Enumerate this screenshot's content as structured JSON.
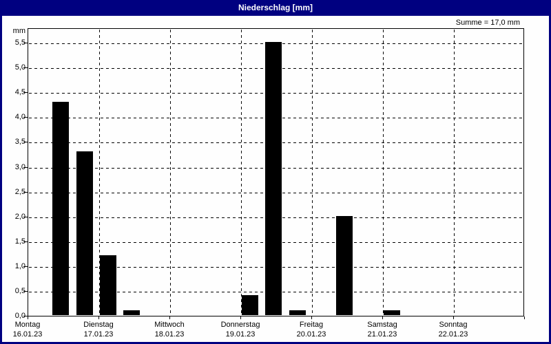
{
  "window": {
    "title": "Niederschlag [mm]",
    "titlebar_color": "#000080",
    "border_color": "#000080",
    "background_color": "#fefefe"
  },
  "chart_data": {
    "type": "bar",
    "title": "Niederschlag [mm]",
    "ylabel": "mm",
    "xlabel": "",
    "sum_label": "Summe = 17,0 mm",
    "sum_value_mm": "17,0",
    "bar_color": "#000000",
    "grid_style": "dashed",
    "legend": "none",
    "ylim": [
      0,
      5.78
    ],
    "y_tick_step": 0.5,
    "y_ticks": [
      {
        "value": 0,
        "label": "0,0"
      },
      {
        "value": 0.5,
        "label": "0,5"
      },
      {
        "value": 1,
        "label": "1,0"
      },
      {
        "value": 1.5,
        "label": "1,5"
      },
      {
        "value": 2,
        "label": "2,0"
      },
      {
        "value": 2.5,
        "label": "2,5"
      },
      {
        "value": 3,
        "label": "3,0"
      },
      {
        "value": 3.5,
        "label": "3,5"
      },
      {
        "value": 4,
        "label": "4,0"
      },
      {
        "value": 4.5,
        "label": "4,5"
      },
      {
        "value": 5,
        "label": "5,0"
      },
      {
        "value": 5.5,
        "label": "5,5"
      }
    ],
    "days": [
      {
        "weekday": "Montag",
        "date": "16.01.23"
      },
      {
        "weekday": "Dienstag",
        "date": "17.01.23"
      },
      {
        "weekday": "Mittwoch",
        "date": "18.01.23"
      },
      {
        "weekday": "Donnerstag",
        "date": "19.01.23"
      },
      {
        "weekday": "Freitag",
        "date": "20.01.23"
      },
      {
        "weekday": "Samstag",
        "date": "21.01.23"
      },
      {
        "weekday": "Sonntag",
        "date": "22.01.23"
      }
    ],
    "slots_per_day": 3,
    "bars": [
      {
        "date": "16.01.23",
        "day_index": 0,
        "slot": 1,
        "value_mm": 4.3
      },
      {
        "date": "16.01.23",
        "day_index": 0,
        "slot": 2,
        "value_mm": 3.3
      },
      {
        "date": "17.01.23",
        "day_index": 1,
        "slot": 0,
        "value_mm": 1.2
      },
      {
        "date": "17.01.23",
        "day_index": 1,
        "slot": 1,
        "value_mm": 0.1
      },
      {
        "date": "19.01.23",
        "day_index": 3,
        "slot": 0,
        "value_mm": 0.4
      },
      {
        "date": "19.01.23",
        "day_index": 3,
        "slot": 1,
        "value_mm": 5.5
      },
      {
        "date": "19.01.23",
        "day_index": 3,
        "slot": 2,
        "value_mm": 0.1
      },
      {
        "date": "20.01.23",
        "day_index": 4,
        "slot": 1,
        "value_mm": 2.0
      },
      {
        "date": "21.01.23",
        "day_index": 5,
        "slot": 0,
        "value_mm": 0.1
      }
    ]
  }
}
